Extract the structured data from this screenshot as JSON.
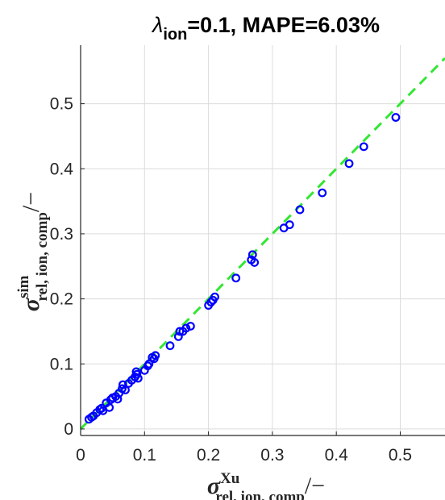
{
  "chart_data": {
    "type": "scatter",
    "title": {
      "symbol": "λ",
      "subscript": "ion",
      "rest": "=0.1, MAPE=6.03%"
    },
    "xlabel": {
      "main": "σ",
      "superscript": "Xu",
      "subscript": "rel, ion, comp",
      "suffix": "/−"
    },
    "ylabel": {
      "main": "σ",
      "superscript": "sim",
      "subscript": "rel, ion, comp",
      "suffix": "/−"
    },
    "xlim": [
      0,
      0.57
    ],
    "ylim": [
      -0.01,
      0.59
    ],
    "x_ticks": [
      "0",
      "0.1",
      "0.2",
      "0.3",
      "0.4",
      "0.5"
    ],
    "y_ticks": [
      "0",
      "0.1",
      "0.2",
      "0.3",
      "0.4",
      "0.5"
    ],
    "grid": true,
    "marker_color": "#0000ff",
    "reference_line": {
      "type": "y=x",
      "color": "#33e633",
      "style": "dashed"
    },
    "series": [
      {
        "points": [
          [
            0.013,
            0.015
          ],
          [
            0.017,
            0.018
          ],
          [
            0.02,
            0.02
          ],
          [
            0.025,
            0.025
          ],
          [
            0.03,
            0.03
          ],
          [
            0.033,
            0.032
          ],
          [
            0.035,
            0.028
          ],
          [
            0.04,
            0.04
          ],
          [
            0.045,
            0.033
          ],
          [
            0.047,
            0.045
          ],
          [
            0.05,
            0.048
          ],
          [
            0.055,
            0.05
          ],
          [
            0.058,
            0.046
          ],
          [
            0.06,
            0.055
          ],
          [
            0.065,
            0.062
          ],
          [
            0.066,
            0.068
          ],
          [
            0.07,
            0.06
          ],
          [
            0.075,
            0.07
          ],
          [
            0.08,
            0.075
          ],
          [
            0.085,
            0.08
          ],
          [
            0.087,
            0.088
          ],
          [
            0.088,
            0.084
          ],
          [
            0.09,
            0.078
          ],
          [
            0.1,
            0.09
          ],
          [
            0.105,
            0.097
          ],
          [
            0.107,
            0.1
          ],
          [
            0.112,
            0.11
          ],
          [
            0.115,
            0.108
          ],
          [
            0.117,
            0.113
          ],
          [
            0.14,
            0.128
          ],
          [
            0.153,
            0.142
          ],
          [
            0.155,
            0.15
          ],
          [
            0.16,
            0.15
          ],
          [
            0.165,
            0.155
          ],
          [
            0.172,
            0.158
          ],
          [
            0.2,
            0.19
          ],
          [
            0.204,
            0.195
          ],
          [
            0.207,
            0.198
          ],
          [
            0.21,
            0.203
          ],
          [
            0.243,
            0.232
          ],
          [
            0.267,
            0.26
          ],
          [
            0.269,
            0.268
          ],
          [
            0.272,
            0.256
          ],
          [
            0.318,
            0.309
          ],
          [
            0.327,
            0.314
          ],
          [
            0.343,
            0.337
          ],
          [
            0.378,
            0.363
          ],
          [
            0.42,
            0.408
          ],
          [
            0.443,
            0.434
          ],
          [
            0.493,
            0.479
          ]
        ]
      }
    ]
  }
}
